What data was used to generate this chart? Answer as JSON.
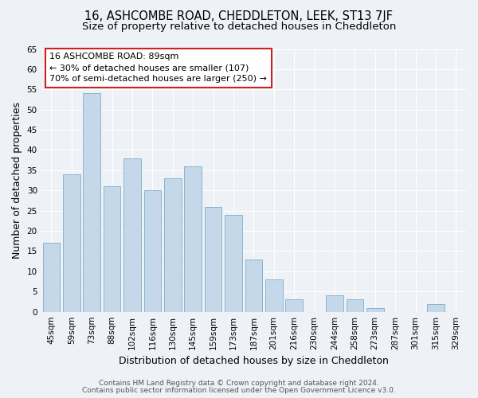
{
  "title": "16, ASHCOMBE ROAD, CHEDDLETON, LEEK, ST13 7JF",
  "subtitle": "Size of property relative to detached houses in Cheddleton",
  "xlabel": "Distribution of detached houses by size in Cheddleton",
  "ylabel": "Number of detached properties",
  "categories": [
    "45sqm",
    "59sqm",
    "73sqm",
    "88sqm",
    "102sqm",
    "116sqm",
    "130sqm",
    "145sqm",
    "159sqm",
    "173sqm",
    "187sqm",
    "201sqm",
    "216sqm",
    "230sqm",
    "244sqm",
    "258sqm",
    "273sqm",
    "287sqm",
    "301sqm",
    "315sqm",
    "329sqm"
  ],
  "values": [
    17,
    34,
    54,
    31,
    38,
    30,
    33,
    36,
    26,
    24,
    13,
    8,
    3,
    0,
    4,
    3,
    1,
    0,
    0,
    2,
    0
  ],
  "bar_color": "#c5d8ea",
  "bar_edge_color": "#8ab4d0",
  "ylim": [
    0,
    65
  ],
  "yticks": [
    0,
    5,
    10,
    15,
    20,
    25,
    30,
    35,
    40,
    45,
    50,
    55,
    60,
    65
  ],
  "annotation_line1": "16 ASHCOMBE ROAD: 89sqm",
  "annotation_line2": "← 30% of detached houses are smaller (107)",
  "annotation_line3": "70% of semi-detached houses are larger (250) →",
  "box_edge_color": "#cc2222",
  "footer_line1": "Contains HM Land Registry data © Crown copyright and database right 2024.",
  "footer_line2": "Contains public sector information licensed under the Open Government Licence v3.0.",
  "bg_color": "#eef2f7",
  "plot_bg_color": "#eef2f7",
  "grid_color": "#ffffff",
  "title_fontsize": 10.5,
  "subtitle_fontsize": 9.5,
  "axis_label_fontsize": 9,
  "tick_fontsize": 7.5,
  "footer_fontsize": 6.5
}
